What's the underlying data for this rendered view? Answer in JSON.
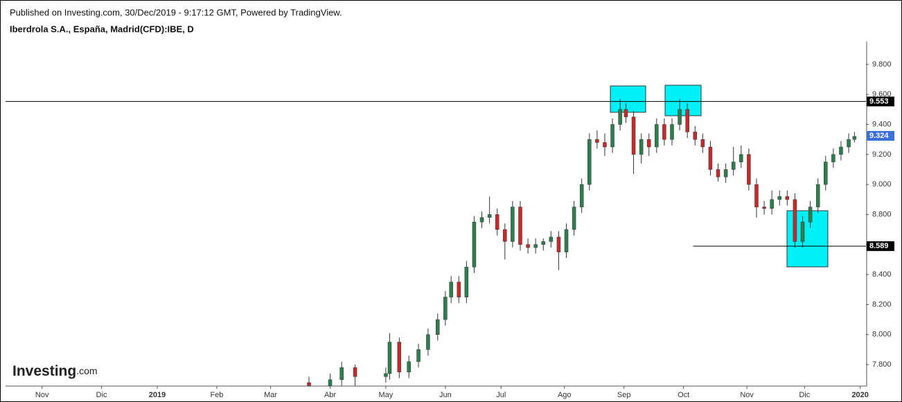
{
  "header": {
    "published": "Published on Investing.com, 30/Dec/2019 - 9:17:12 GMT, Powered by TradingView.",
    "symbol": "Iberdrola S.A., España, Madrid(CFD):IBE, D",
    "logo": "Investing",
    "logo_suffix": ".com"
  },
  "chart_data": {
    "type": "candlestick",
    "x": [
      158,
      169,
      175,
      182,
      198,
      200,
      205,
      210,
      215,
      220,
      225,
      229,
      232,
      236,
      240,
      244,
      248,
      252,
      256,
      260,
      264,
      268,
      272,
      276,
      280,
      284,
      288,
      292,
      296,
      300,
      304,
      308,
      312,
      316,
      320,
      323,
      327,
      331,
      335,
      339,
      343,
      347,
      351,
      355,
      359,
      363,
      367,
      371,
      375,
      379,
      383,
      387,
      391,
      395,
      399,
      403,
      407,
      411,
      415,
      419,
      423,
      427,
      431,
      435,
      439,
      442
    ],
    "open": [
      7.68,
      7.66,
      7.7,
      7.78,
      7.72,
      7.74,
      7.95,
      7.75,
      7.82,
      7.9,
      8.0,
      8.1,
      8.25,
      8.35,
      8.25,
      8.45,
      8.75,
      8.78,
      8.8,
      8.7,
      8.62,
      8.85,
      8.6,
      8.58,
      8.6,
      8.62,
      8.65,
      8.55,
      8.7,
      8.85,
      9.0,
      9.3,
      9.28,
      9.25,
      9.4,
      9.5,
      9.45,
      9.2,
      9.3,
      9.25,
      9.4,
      9.3,
      9.4,
      9.5,
      9.35,
      9.3,
      9.25,
      9.1,
      9.05,
      9.1,
      9.15,
      9.2,
      9.0,
      8.85,
      8.84,
      8.9,
      8.92,
      8.9,
      8.62,
      8.75,
      8.85,
      9.0,
      9.15,
      9.2,
      9.25,
      9.3
    ],
    "high": [
      7.72,
      7.74,
      7.82,
      7.8,
      7.78,
      8.01,
      7.98,
      7.86,
      7.94,
      8.04,
      8.14,
      8.29,
      8.39,
      8.39,
      8.49,
      8.79,
      8.82,
      8.92,
      8.84,
      8.74,
      8.89,
      8.89,
      8.64,
      8.64,
      8.64,
      8.69,
      8.69,
      8.74,
      8.89,
      9.04,
      9.34,
      9.36,
      9.34,
      9.44,
      9.57,
      9.54,
      9.49,
      9.34,
      9.34,
      9.44,
      9.44,
      9.44,
      9.57,
      9.54,
      9.39,
      9.34,
      9.29,
      9.14,
      9.14,
      9.25,
      9.26,
      9.24,
      9.04,
      8.89,
      8.96,
      8.96,
      8.96,
      8.94,
      8.79,
      8.89,
      9.04,
      9.19,
      9.24,
      9.29,
      9.34,
      9.35
    ],
    "low": [
      7.64,
      7.62,
      7.66,
      7.66,
      7.68,
      7.7,
      7.71,
      7.71,
      7.78,
      7.86,
      7.96,
      8.06,
      8.21,
      8.21,
      8.21,
      8.41,
      8.71,
      8.74,
      8.66,
      8.5,
      8.58,
      8.56,
      8.54,
      8.54,
      8.56,
      8.58,
      8.43,
      8.51,
      8.66,
      8.81,
      8.96,
      9.24,
      9.19,
      9.21,
      9.36,
      9.41,
      9.07,
      9.14,
      9.19,
      9.21,
      9.26,
      9.26,
      9.36,
      9.31,
      9.26,
      9.21,
      9.06,
      9.02,
      9.01,
      9.06,
      9.11,
      8.96,
      8.78,
      8.8,
      8.8,
      8.86,
      8.86,
      8.58,
      8.58,
      8.71,
      8.81,
      8.96,
      9.11,
      9.16,
      9.21,
      9.28
    ],
    "close": [
      7.66,
      7.7,
      7.78,
      7.72,
      7.74,
      7.95,
      7.75,
      7.82,
      7.9,
      8.0,
      8.1,
      8.25,
      8.35,
      8.25,
      8.45,
      8.75,
      8.78,
      8.8,
      8.7,
      8.62,
      8.85,
      8.6,
      8.58,
      8.6,
      8.62,
      8.65,
      8.55,
      8.7,
      8.85,
      9.0,
      9.3,
      9.28,
      9.25,
      9.4,
      9.5,
      9.45,
      9.2,
      9.3,
      9.25,
      9.4,
      9.3,
      9.4,
      9.5,
      9.35,
      9.3,
      9.25,
      9.1,
      9.05,
      9.1,
      9.15,
      9.2,
      9.0,
      8.85,
      8.84,
      8.9,
      8.92,
      8.9,
      8.62,
      8.75,
      8.85,
      9.0,
      9.15,
      9.2,
      9.25,
      9.3,
      9.32
    ],
    "up_color": "#2e7d4f",
    "down_color": "#c62a2a",
    "xlim": [
      0,
      448
    ],
    "xticks": [
      {
        "value": 19,
        "label": "Nov"
      },
      {
        "value": 50,
        "label": "Dic"
      },
      {
        "value": 79,
        "label": "2019"
      },
      {
        "value": 110,
        "label": "Feb"
      },
      {
        "value": 138,
        "label": "Mar"
      },
      {
        "value": 169,
        "label": "Abr"
      },
      {
        "value": 198,
        "label": "May"
      },
      {
        "value": 229,
        "label": "Jun"
      },
      {
        "value": 258,
        "label": "Jul"
      },
      {
        "value": 291,
        "label": "Ago"
      },
      {
        "value": 322,
        "label": "Sep"
      },
      {
        "value": 353,
        "label": "Oct"
      },
      {
        "value": 386,
        "label": "Nov"
      },
      {
        "value": 416,
        "label": "Dic"
      },
      {
        "value": 445,
        "label": "2020"
      }
    ],
    "ylim": [
      7.657,
      9.952
    ],
    "yticks": [
      {
        "value": 7.8,
        "label": "7.800"
      },
      {
        "value": 8.0,
        "label": "8.000"
      },
      {
        "value": 8.2,
        "label": "8.200"
      },
      {
        "value": 8.4,
        "label": "8.400"
      },
      {
        "value": 8.6,
        "label": "8.600"
      },
      {
        "value": 8.8,
        "label": "8.800"
      },
      {
        "value": 9.0,
        "label": "9.000"
      },
      {
        "value": 9.2,
        "label": "9.200"
      },
      {
        "value": 9.4,
        "label": "9.400"
      },
      {
        "value": 9.6,
        "label": "9.600"
      },
      {
        "value": 9.8,
        "label": "9.800"
      }
    ],
    "levels": [
      {
        "value": 9.553,
        "from_x": 0
      },
      {
        "value": 8.589,
        "from_x": 358
      }
    ],
    "last": 9.324,
    "last_color": "#3b6fd9"
  }
}
